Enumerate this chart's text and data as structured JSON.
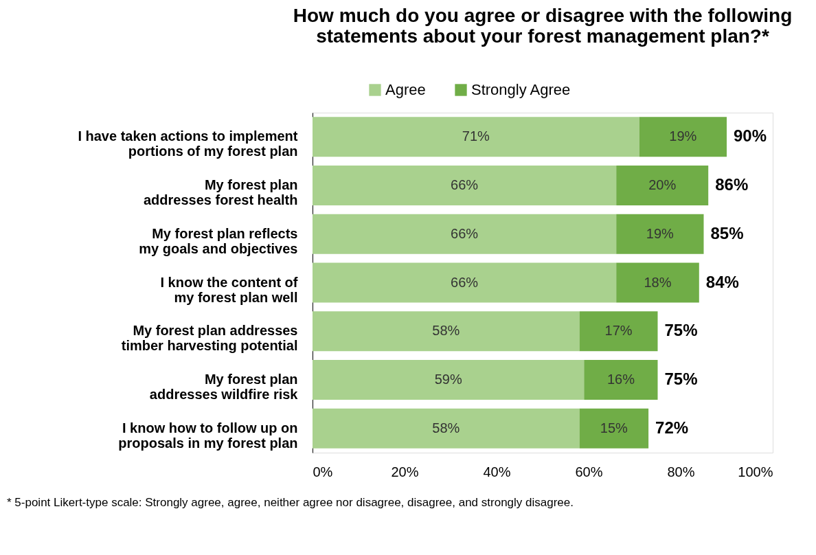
{
  "chart_data": {
    "type": "bar",
    "orientation": "horizontal",
    "stacked": true,
    "title": "How much do you agree or disagree with the following statements about your forest management plan?*",
    "categories": [
      "I have taken actions to implement portions of my forest plan",
      "My forest plan addresses forest health",
      "My forest plan reflects my goals and objectives",
      "I know the content of my forest plan well",
      "My forest plan addresses timber harvesting potential",
      "My forest plan addresses wildfire risk",
      "I know how to follow up on proposals in my forest plan"
    ],
    "series": [
      {
        "name": "Agree",
        "color": "#a9d18e",
        "values": [
          71,
          66,
          66,
          66,
          58,
          59,
          58
        ],
        "value_labels": [
          "71%",
          "66%",
          "66%",
          "66%",
          "58%",
          "59%",
          "58%"
        ]
      },
      {
        "name": "Strongly Agree",
        "color": "#70ad47",
        "values": [
          19,
          20,
          19,
          18,
          17,
          16,
          15
        ],
        "value_labels": [
          "19%",
          "20%",
          "19%",
          "18%",
          "17%",
          "16%",
          "15%"
        ]
      }
    ],
    "totals": [
      "90%",
      "86%",
      "85%",
      "84%",
      "75%",
      "75%",
      "72%"
    ],
    "xlim": [
      0,
      100
    ],
    "xticks": [
      {
        "value": 0,
        "label": "0%"
      },
      {
        "value": 20,
        "label": "20%"
      },
      {
        "value": 40,
        "label": "40%"
      },
      {
        "value": 60,
        "label": "60%"
      },
      {
        "value": 80,
        "label": "80%"
      },
      {
        "value": 100,
        "label": "100%"
      }
    ],
    "grid": false,
    "legend": "top",
    "annotations": [
      "* 5-point Likert-type scale: Strongly agree, agree, neither agree nor disagree, disagree, and strongly disagree."
    ]
  }
}
